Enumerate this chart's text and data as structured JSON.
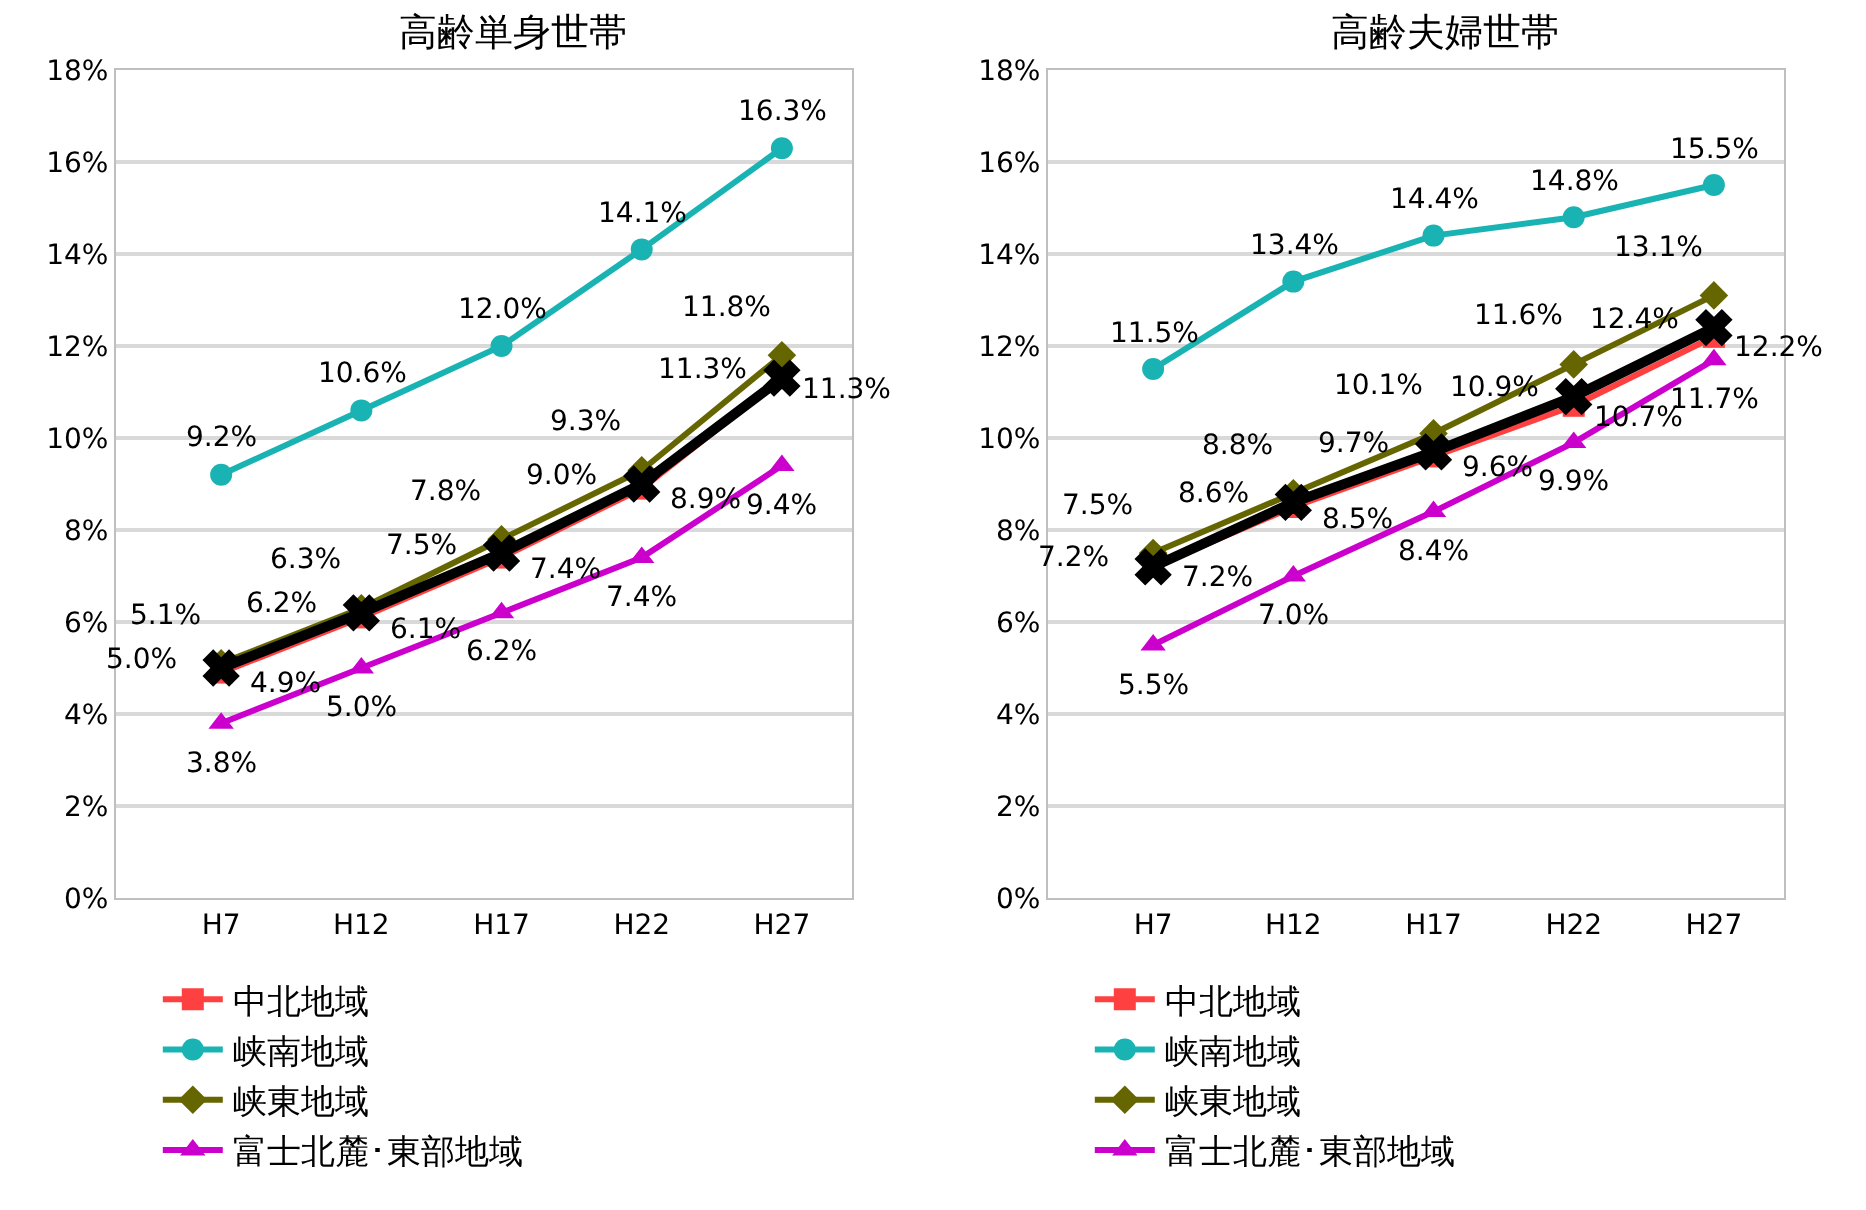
{
  "chart_data": [
    {
      "type": "line",
      "title": "高齢単身世帯",
      "categories": [
        "H7",
        "H12",
        "H17",
        "H22",
        "H27"
      ],
      "ylim": [
        0,
        18
      ],
      "yticks": [
        {
          "value": 0,
          "label": "0%"
        },
        {
          "value": 2,
          "label": "2%"
        },
        {
          "value": 4,
          "label": "4%"
        },
        {
          "value": 6,
          "label": "6%"
        },
        {
          "value": 8,
          "label": "8%"
        },
        {
          "value": 10,
          "label": "10%"
        },
        {
          "value": 12,
          "label": "12%"
        },
        {
          "value": 14,
          "label": "14%"
        },
        {
          "value": 16,
          "label": "16%"
        },
        {
          "value": 18,
          "label": "18%"
        }
      ],
      "grid": "y",
      "legend": "bottom",
      "series": [
        {
          "name": "中北地域",
          "color": "#ff4040",
          "marker": "square",
          "values": [
            4.9,
            6.1,
            7.4,
            8.9,
            11.3
          ],
          "value_labels": [
            "4.9%",
            "6.1%",
            "7.4%",
            "8.9%",
            "11.3%"
          ]
        },
        {
          "name": "峡南地域",
          "color": "#1ab3b3",
          "marker": "circle",
          "values": [
            9.2,
            10.6,
            12.0,
            14.1,
            16.3
          ],
          "value_labels": [
            "9.2%",
            "10.6%",
            "12.0%",
            "14.1%",
            "16.3%"
          ]
        },
        {
          "name": "峡東地域",
          "color": "#666600",
          "marker": "diamond",
          "values": [
            5.1,
            6.3,
            7.8,
            9.3,
            11.8
          ],
          "value_labels": [
            "5.1%",
            "6.3%",
            "7.8%",
            "9.3%",
            "11.8%"
          ]
        },
        {
          "name": "富士北麓･東部地域",
          "color": "#cc00cc",
          "marker": "triangle",
          "values": [
            3.8,
            5.0,
            6.2,
            7.4,
            9.4
          ],
          "value_labels": [
            "3.8%",
            "5.0%",
            "6.2%",
            "7.4%",
            "9.4%"
          ]
        },
        {
          "color": "#000000",
          "marker": "cross",
          "values": [
            5.0,
            6.2,
            7.5,
            9.0,
            11.3
          ],
          "value_labels": [
            "5.0%",
            "6.2%",
            "7.5%",
            "9.0%",
            "11.3%"
          ]
        }
      ]
    },
    {
      "type": "line",
      "title": "高齢夫婦世帯",
      "categories": [
        "H7",
        "H12",
        "H17",
        "H22",
        "H27"
      ],
      "ylim": [
        0,
        18
      ],
      "yticks": [
        {
          "value": 0,
          "label": "0%"
        },
        {
          "value": 2,
          "label": "2%"
        },
        {
          "value": 4,
          "label": "4%"
        },
        {
          "value": 6,
          "label": "6%"
        },
        {
          "value": 8,
          "label": "8%"
        },
        {
          "value": 10,
          "label": "10%"
        },
        {
          "value": 12,
          "label": "12%"
        },
        {
          "value": 14,
          "label": "14%"
        },
        {
          "value": 16,
          "label": "16%"
        },
        {
          "value": 18,
          "label": "18%"
        }
      ],
      "grid": "y",
      "legend": "bottom",
      "series": [
        {
          "name": "中北地域",
          "color": "#ff4040",
          "marker": "square",
          "values": [
            7.2,
            8.5,
            9.6,
            10.7,
            12.2
          ],
          "value_labels": [
            "7.2%",
            "8.5%",
            "9.6%",
            "10.7%",
            "12.2%"
          ]
        },
        {
          "name": "峡南地域",
          "color": "#1ab3b3",
          "marker": "circle",
          "values": [
            11.5,
            13.4,
            14.4,
            14.8,
            15.5
          ],
          "value_labels": [
            "11.5%",
            "13.4%",
            "14.4%",
            "14.8%",
            "15.5%"
          ]
        },
        {
          "name": "峡東地域",
          "color": "#666600",
          "marker": "diamond",
          "values": [
            7.5,
            8.8,
            10.1,
            11.6,
            13.1
          ],
          "value_labels": [
            "7.5%",
            "8.8%",
            "10.1%",
            "11.6%",
            "13.1%"
          ]
        },
        {
          "name": "富士北麓･東部地域",
          "color": "#cc00cc",
          "marker": "triangle",
          "values": [
            5.5,
            7.0,
            8.4,
            9.9,
            11.7
          ],
          "value_labels": [
            "5.5%",
            "7.0%",
            "8.4%",
            "9.9%",
            "11.7%"
          ]
        },
        {
          "color": "#000000",
          "marker": "cross",
          "values": [
            7.2,
            8.6,
            9.7,
            10.9,
            12.4
          ],
          "value_labels": [
            "7.2%",
            "8.6%",
            "9.7%",
            "10.9%",
            "12.4%"
          ]
        }
      ]
    }
  ]
}
